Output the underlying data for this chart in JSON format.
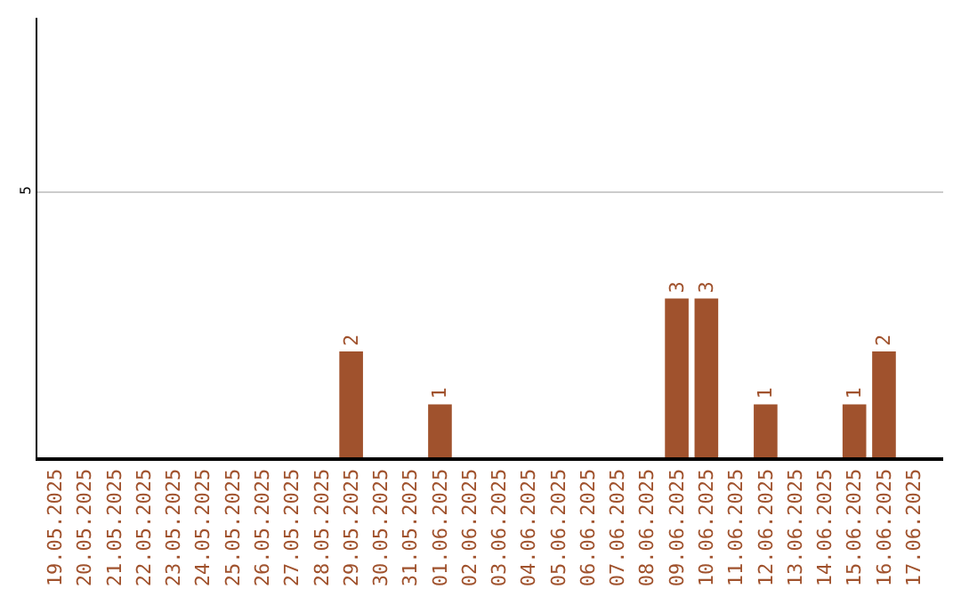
{
  "chart_data": {
    "type": "bar",
    "categories": [
      "19.05.2025",
      "20.05.2025",
      "21.05.2025",
      "22.05.2025",
      "23.05.2025",
      "24.05.2025",
      "25.05.2025",
      "26.05.2025",
      "27.05.2025",
      "28.05.2025",
      "29.05.2025",
      "30.05.2025",
      "31.05.2025",
      "01.06.2025",
      "02.06.2025",
      "03.06.2025",
      "04.06.2025",
      "05.06.2025",
      "06.06.2025",
      "07.06.2025",
      "08.06.2025",
      "09.06.2025",
      "10.06.2025",
      "11.06.2025",
      "12.06.2025",
      "13.06.2025",
      "14.06.2025",
      "15.06.2025",
      "16.06.2025",
      "17.06.2025"
    ],
    "values": [
      0,
      0,
      0,
      0,
      0,
      0,
      0,
      0,
      0,
      0,
      2,
      0,
      0,
      1,
      0,
      0,
      0,
      0,
      0,
      0,
      0,
      3,
      3,
      0,
      1,
      0,
      0,
      1,
      2,
      0
    ],
    "value_labels": [
      null,
      null,
      null,
      null,
      null,
      null,
      null,
      null,
      null,
      null,
      "2",
      null,
      null,
      "1",
      null,
      null,
      null,
      null,
      null,
      null,
      null,
      "3",
      "3",
      null,
      "1",
      null,
      null,
      "1",
      "2",
      null
    ],
    "color": "#a0522d",
    "ylim": [
      0,
      8.3
    ],
    "yticks": [
      5
    ],
    "grid": "y",
    "legend": false
  }
}
